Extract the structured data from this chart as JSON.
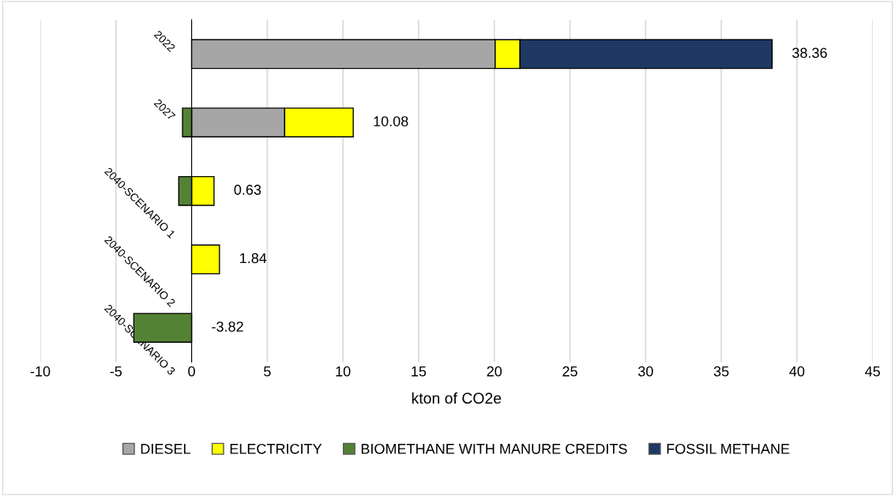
{
  "chart_data": {
    "type": "bar",
    "orientation": "horizontal",
    "stacked": true,
    "xlabel": "kton of CO2e",
    "categories": [
      "2022",
      "2027",
      "2040-SCENARIO 1",
      "2040-SCENARIO 2",
      "2040-SCENARIO 3"
    ],
    "series": [
      {
        "name": "DIESEL",
        "color": "#a6a6a6",
        "values": [
          20.06,
          6.15,
          null,
          null,
          null
        ]
      },
      {
        "name": "ELECTRICITY",
        "color": "#ffff00",
        "values": [
          1.64,
          4.53,
          1.48,
          1.84,
          null
        ]
      },
      {
        "name": "BIOMETHANE WITH MANURE CREDITS",
        "color": "#548235",
        "values": [
          null,
          -0.6,
          -0.85,
          null,
          -3.82
        ]
      },
      {
        "name": "FOSSIL METHANE",
        "color": "#1f3864",
        "values": [
          16.66,
          null,
          null,
          null,
          null
        ]
      }
    ],
    "totals": [
      "38.36",
      "10.08",
      "0.63",
      "1.84",
      "-3.82"
    ],
    "xlim": [
      -10,
      45
    ],
    "xticks": [
      -10,
      -5,
      0,
      5,
      10,
      15,
      20,
      25,
      30,
      35,
      40,
      45
    ],
    "grid": "x",
    "legend": "bottom"
  }
}
